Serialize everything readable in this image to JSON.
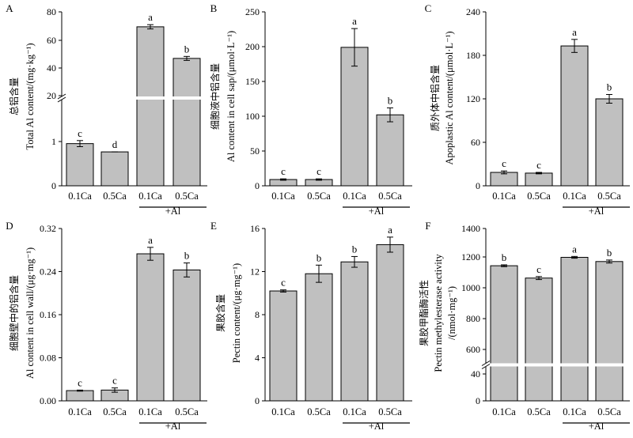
{
  "chart_data": [
    {
      "panel": "A",
      "type": "bar",
      "categories": [
        "0.1Ca",
        "0.5Ca",
        "0.1Ca",
        "0.5Ca"
      ],
      "group_label": "+Al",
      "values": [
        0.97,
        0.78,
        69.5,
        47.3
      ],
      "errors": [
        0.07,
        0.0,
        1.5,
        1.4
      ],
      "letters": [
        "c",
        "d",
        "a",
        "b"
      ],
      "ylabel_cn": "总铝含量",
      "ylabel_en": "Total Al content/(mg·kg⁻¹)",
      "axis_break": true,
      "lower_ticks": [
        "0",
        "1"
      ],
      "upper_ticks": [
        "20",
        "40",
        "60",
        "80"
      ],
      "lower_ylim": [
        0,
        2
      ],
      "upper_ylim": [
        20,
        80
      ],
      "bar_color": "#c0c0c0"
    },
    {
      "panel": "B",
      "type": "bar",
      "categories": [
        "0.1Ca",
        "0.5Ca",
        "0.1Ca",
        "0.5Ca"
      ],
      "group_label": "+Al",
      "values": [
        9,
        9,
        199,
        102
      ],
      "errors": [
        1,
        1,
        27,
        10
      ],
      "letters": [
        "c",
        "c",
        "a",
        "b"
      ],
      "ylabel_cn": "细胞液中铝含量",
      "ylabel_en": "Al content in cell sap/(μmol·L⁻¹)",
      "ylim": [
        0,
        250
      ],
      "yticks": [
        "0",
        "50",
        "100",
        "150",
        "200",
        "250"
      ],
      "bar_color": "#c0c0c0"
    },
    {
      "panel": "C",
      "type": "bar",
      "categories": [
        "0.1Ca",
        "0.5Ca",
        "0.1Ca",
        "0.5Ca"
      ],
      "group_label": "+Al",
      "values": [
        18.5,
        17.5,
        193,
        120
      ],
      "errors": [
        2,
        1,
        9,
        6
      ],
      "letters": [
        "c",
        "c",
        "a",
        "b"
      ],
      "ylabel_cn": "质外体中铝含量",
      "ylabel_en": "Apoplastic Al content/(μmol·L⁻¹)",
      "ylim": [
        0,
        240
      ],
      "yticks": [
        "0",
        "60",
        "120",
        "180",
        "240"
      ],
      "bar_color": "#c0c0c0"
    },
    {
      "panel": "D",
      "type": "bar",
      "categories": [
        "0.1Ca",
        "0.5Ca",
        "0.1Ca",
        "0.5Ca"
      ],
      "group_label": "+Al",
      "values": [
        0.019,
        0.02,
        0.273,
        0.243
      ],
      "errors": [
        0.001,
        0.004,
        0.012,
        0.013
      ],
      "letters": [
        "c",
        "c",
        "a",
        "b"
      ],
      "ylabel_cn": "细胞壁中的铝含量",
      "ylabel_en": "Al content in cell wall/(μg·mg⁻¹)",
      "ylim": [
        0,
        0.32
      ],
      "yticks": [
        "0.00",
        "0.08",
        "0.16",
        "0.24",
        "0.32"
      ],
      "bar_color": "#c0c0c0"
    },
    {
      "panel": "E",
      "type": "bar",
      "categories": [
        "0.1Ca",
        "0.5Ca",
        "0.1Ca",
        "0.5Ca"
      ],
      "group_label": "+Al",
      "values": [
        10.2,
        11.8,
        12.9,
        14.5
      ],
      "errors": [
        0.1,
        0.8,
        0.5,
        0.7
      ],
      "letters": [
        "c",
        "b",
        "b",
        "a"
      ],
      "ylabel_cn": "果胶含量",
      "ylabel_en": "Pectin content/(μg·mg⁻¹)",
      "ylim": [
        0,
        16
      ],
      "yticks": [
        "0",
        "4",
        "8",
        "12",
        "16"
      ],
      "bar_color": "#c0c0c0"
    },
    {
      "panel": "F",
      "type": "bar",
      "categories": [
        "0.1Ca",
        "0.5Ca",
        "0.1Ca",
        "0.5Ca"
      ],
      "group_label": "+Al",
      "values": [
        1152,
        1070,
        1208,
        1180
      ],
      "errors": [
        6,
        10,
        6,
        10
      ],
      "letters": [
        "b",
        "c",
        "a",
        "b"
      ],
      "ylabel_cn": "果胶甲酯酶活性",
      "ylabel_en": "Pectin methylesterase activity",
      "ylabel_en2": "/(nmol·mg⁻¹)",
      "axis_break": true,
      "lower_ticks": [
        "0",
        "40"
      ],
      "upper_ticks": [
        "600",
        "800",
        "1000",
        "1200",
        "1400"
      ],
      "lower_ylim": [
        0,
        60
      ],
      "upper_ylim": [
        500,
        1400
      ],
      "bar_color": "#c0c0c0"
    }
  ]
}
